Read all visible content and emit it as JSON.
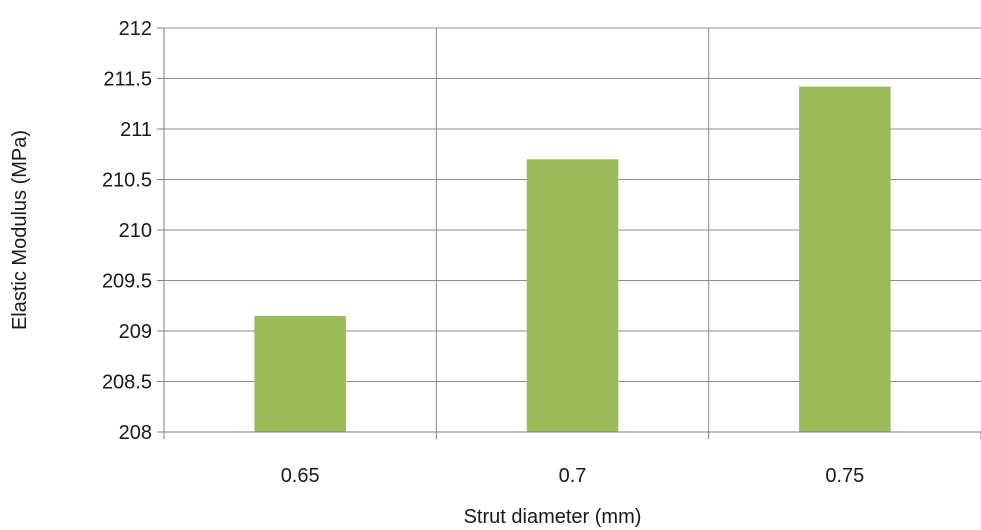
{
  "chart_data": {
    "type": "bar",
    "categories": [
      "0.65",
      "0.7",
      "0.75"
    ],
    "values": [
      209.15,
      210.7,
      211.42
    ],
    "title": "",
    "xlabel": "Strut diameter (mm)",
    "ylabel": "Elastic Modulus (MPa)",
    "ylim": [
      208,
      212
    ],
    "ytick_step": 0.5,
    "yticks": [
      "208",
      "208.5",
      "209",
      "209.5",
      "210",
      "210.5",
      "211",
      "211.5",
      "212"
    ],
    "grid": "both",
    "legend": "none",
    "bar_color": "#9bbb59"
  }
}
